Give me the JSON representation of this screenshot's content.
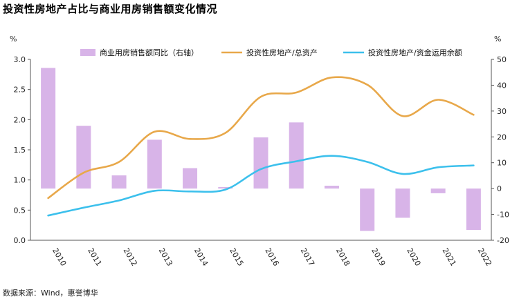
{
  "title": "投资性房地产占比与商业用房销售额变化情况",
  "source": "数据来源：Wind，惠誉博华",
  "chart_data": {
    "type": "bar+line",
    "categories": [
      "2010",
      "2011",
      "2012",
      "2013",
      "2014",
      "2015",
      "2016",
      "2017",
      "2018",
      "2019",
      "2020",
      "2021",
      "2022"
    ],
    "left_axis": {
      "unit_label": "%",
      "min": 0.0,
      "max": 3.0,
      "ticks": [
        "0.0",
        "0.5",
        "1.0",
        "1.5",
        "2.0",
        "2.5",
        "3.0"
      ]
    },
    "right_axis": {
      "unit_label": "%",
      "min": -20,
      "max": 50,
      "ticks": [
        "-20",
        "-10",
        "0",
        "10",
        "20",
        "30",
        "40",
        "50"
      ]
    },
    "legend": {
      "placement": "top"
    },
    "series": [
      {
        "name": "商业用房销售额同比（右轴）",
        "type": "bar",
        "axis": "right",
        "color": "#d8b4e8",
        "values": [
          46.7,
          24.3,
          5.1,
          18.9,
          7.9,
          0.6,
          19.8,
          25.6,
          1.1,
          -16.4,
          -11.3,
          -1.8,
          -16.0
        ]
      },
      {
        "name": "投资性房地产/总资产",
        "type": "line",
        "axis": "left",
        "color": "#e8a84a",
        "values": [
          0.7,
          1.12,
          1.3,
          1.8,
          1.68,
          1.78,
          2.38,
          2.45,
          2.7,
          2.58,
          2.06,
          2.33,
          2.08
        ]
      },
      {
        "name": "投资性房地产/资金运用余额",
        "type": "line",
        "axis": "left",
        "color": "#3cc0ec",
        "values": [
          0.41,
          0.54,
          0.66,
          0.82,
          0.81,
          0.84,
          1.18,
          1.31,
          1.4,
          1.3,
          1.1,
          1.21,
          1.24
        ]
      }
    ]
  }
}
